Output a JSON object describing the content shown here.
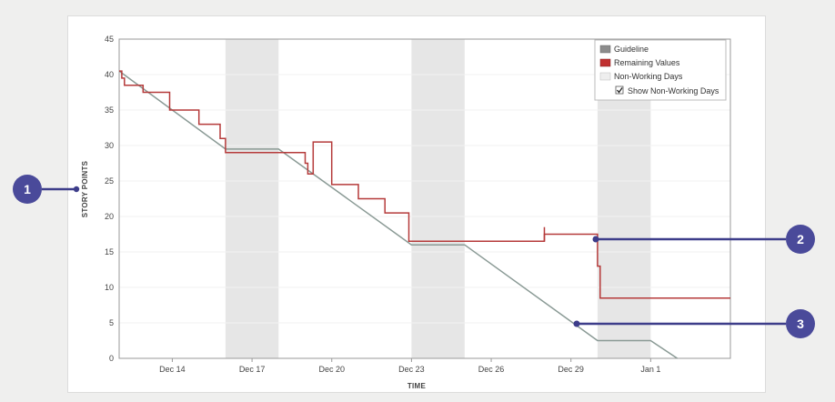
{
  "chart_data": {
    "type": "line",
    "title": "",
    "xlabel": "TIME",
    "ylabel": "STORY POINTS",
    "ylim": [
      0,
      45
    ],
    "yticks": [
      0,
      5,
      10,
      15,
      20,
      25,
      30,
      35,
      40,
      45
    ],
    "xticks": [
      "Dec 14",
      "Dec 17",
      "Dec 20",
      "Dec 23",
      "Dec 26",
      "Dec 29",
      "Jan 1"
    ],
    "xtick_days": [
      2,
      5,
      8,
      11,
      14,
      17,
      20
    ],
    "xlim_days": [
      0,
      23
    ],
    "non_working_days": [
      [
        4,
        6
      ],
      [
        11,
        13
      ],
      [
        18,
        20
      ]
    ],
    "series": [
      {
        "name": "Guideline",
        "color": "#8a9a95",
        "points": [
          [
            0,
            40.5
          ],
          [
            4,
            29.5
          ],
          [
            6,
            29.5
          ],
          [
            11,
            16
          ],
          [
            13,
            16
          ],
          [
            18,
            2.5
          ],
          [
            20,
            2.5
          ],
          [
            21,
            0
          ]
        ]
      },
      {
        "name": "Remaining Values",
        "color": "#b53a3a",
        "points": [
          [
            0,
            40.5
          ],
          [
            0.1,
            40.5
          ],
          [
            0.1,
            39.5
          ],
          [
            0.2,
            39.5
          ],
          [
            0.2,
            38.5
          ],
          [
            0.9,
            38.5
          ],
          [
            0.9,
            37.5
          ],
          [
            1.9,
            37.5
          ],
          [
            1.9,
            35
          ],
          [
            3.0,
            35
          ],
          [
            3.0,
            33
          ],
          [
            3.8,
            33
          ],
          [
            3.8,
            31
          ],
          [
            4.0,
            31
          ],
          [
            4.0,
            29
          ],
          [
            7.0,
            29
          ],
          [
            7.0,
            27.5
          ],
          [
            7.1,
            27.5
          ],
          [
            7.1,
            26
          ],
          [
            7.3,
            26
          ],
          [
            7.3,
            30.5
          ],
          [
            8.0,
            30.5
          ],
          [
            8.0,
            24.5
          ],
          [
            9.0,
            24.5
          ],
          [
            9.0,
            22.5
          ],
          [
            10.0,
            22.5
          ],
          [
            10.0,
            20.5
          ],
          [
            10.9,
            20.5
          ],
          [
            10.9,
            16.5
          ],
          [
            16.0,
            16.5
          ],
          [
            16.0,
            17.5
          ],
          [
            18.0,
            17.5
          ],
          [
            18.0,
            13
          ],
          [
            18.1,
            13
          ],
          [
            18.1,
            8.5
          ],
          [
            23,
            8.5
          ]
        ]
      }
    ],
    "legend": {
      "position": "top-right",
      "items": [
        "Guideline",
        "Remaining Values",
        "Non-Working Days"
      ],
      "checkbox_label": "Show Non-Working Days",
      "checkbox_checked": true
    }
  },
  "markers": [
    {
      "number": "1",
      "target": "y-axis-title"
    },
    {
      "number": "2",
      "target": "remaining-values-line"
    },
    {
      "number": "3",
      "target": "guideline-line"
    }
  ],
  "colors": {
    "marker": "#4a4a9a",
    "non_working": "#e6e6e6",
    "background": "#efefee",
    "card": "#ffffff"
  }
}
